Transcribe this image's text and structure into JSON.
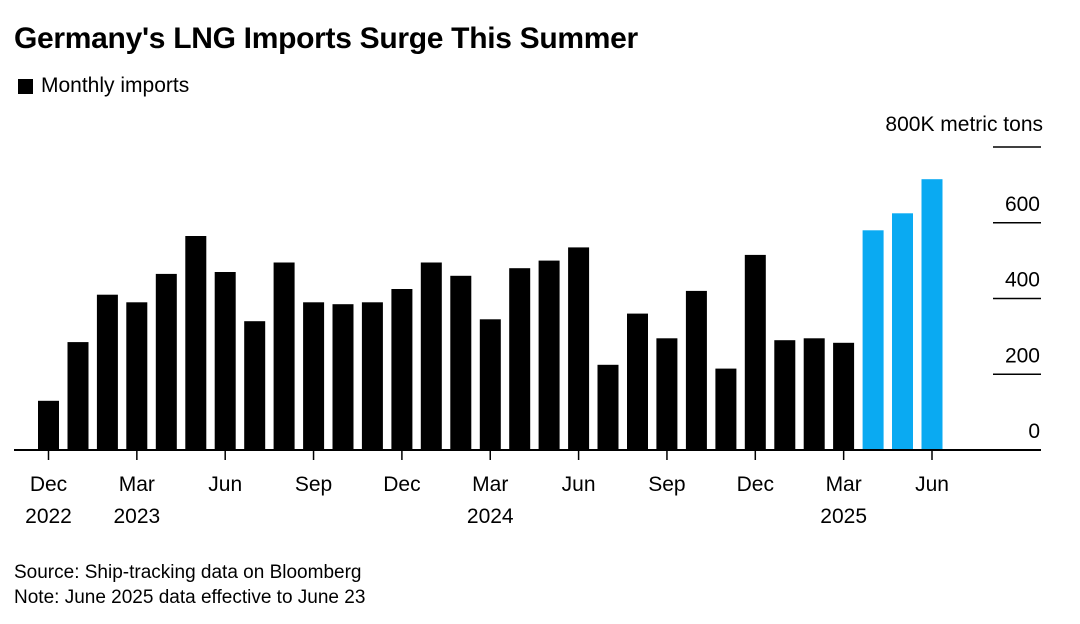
{
  "title": "Germany's LNG Imports Surge This Summer",
  "legend": {
    "label": "Monthly imports"
  },
  "unit_label": "800K metric tons",
  "colors": {
    "regular": "#000000",
    "highlight": "#0aaaf2",
    "axis": "#000000"
  },
  "chart_data": {
    "type": "bar",
    "title": "Germany's LNG Imports Surge This Summer",
    "ylabel": "800K metric tons",
    "ylim": [
      0,
      800
    ],
    "yticks": [
      "0",
      "200",
      "400",
      "600"
    ],
    "yticks_values": [
      0,
      200,
      400,
      600
    ],
    "categories": [
      "Dec 2022",
      "Jan 2023",
      "Feb 2023",
      "Mar 2023",
      "Apr 2023",
      "May 2023",
      "Jun 2023",
      "Jul 2023",
      "Aug 2023",
      "Sep 2023",
      "Oct 2023",
      "Nov 2023",
      "Dec 2023",
      "Jan 2024",
      "Feb 2024",
      "Mar 2024",
      "Apr 2024",
      "May 2024",
      "Jun 2024",
      "Jul 2024",
      "Aug 2024",
      "Sep 2024",
      "Oct 2024",
      "Nov 2024",
      "Dec 2024",
      "Jan 2025",
      "Feb 2025",
      "Mar 2025",
      "Apr 2025",
      "May 2025",
      "Jun 2025"
    ],
    "series": [
      {
        "name": "Monthly imports",
        "values": [
          130,
          285,
          410,
          390,
          465,
          565,
          470,
          340,
          495,
          390,
          385,
          390,
          425,
          495,
          460,
          345,
          480,
          500,
          535,
          225,
          360,
          295,
          420,
          215,
          515,
          290,
          295,
          283,
          580,
          625,
          715
        ],
        "highlight": [
          false,
          false,
          false,
          false,
          false,
          false,
          false,
          false,
          false,
          false,
          false,
          false,
          false,
          false,
          false,
          false,
          false,
          false,
          false,
          false,
          false,
          false,
          false,
          false,
          false,
          false,
          false,
          false,
          true,
          true,
          true
        ]
      }
    ],
    "xtick_labels": [
      {
        "month": "Dec",
        "year": "2022",
        "index": 0
      },
      {
        "month": "Mar",
        "year": "2023",
        "index": 3
      },
      {
        "month": "Jun",
        "year": "",
        "index": 6
      },
      {
        "month": "Sep",
        "year": "",
        "index": 9
      },
      {
        "month": "Dec",
        "year": "",
        "index": 12
      },
      {
        "month": "Mar",
        "year": "2024",
        "index": 15
      },
      {
        "month": "Jun",
        "year": "",
        "index": 18
      },
      {
        "month": "Sep",
        "year": "",
        "index": 21
      },
      {
        "month": "Dec",
        "year": "",
        "index": 24
      },
      {
        "month": "Mar",
        "year": "2025",
        "index": 27
      },
      {
        "month": "Jun",
        "year": "",
        "index": 30
      }
    ],
    "grid": "right-side tick lines only",
    "legend_position": "top-left"
  },
  "footer": {
    "source": "Source: Ship-tracking data on Bloomberg",
    "note": "Note: June 2025 data effective to June 23"
  }
}
